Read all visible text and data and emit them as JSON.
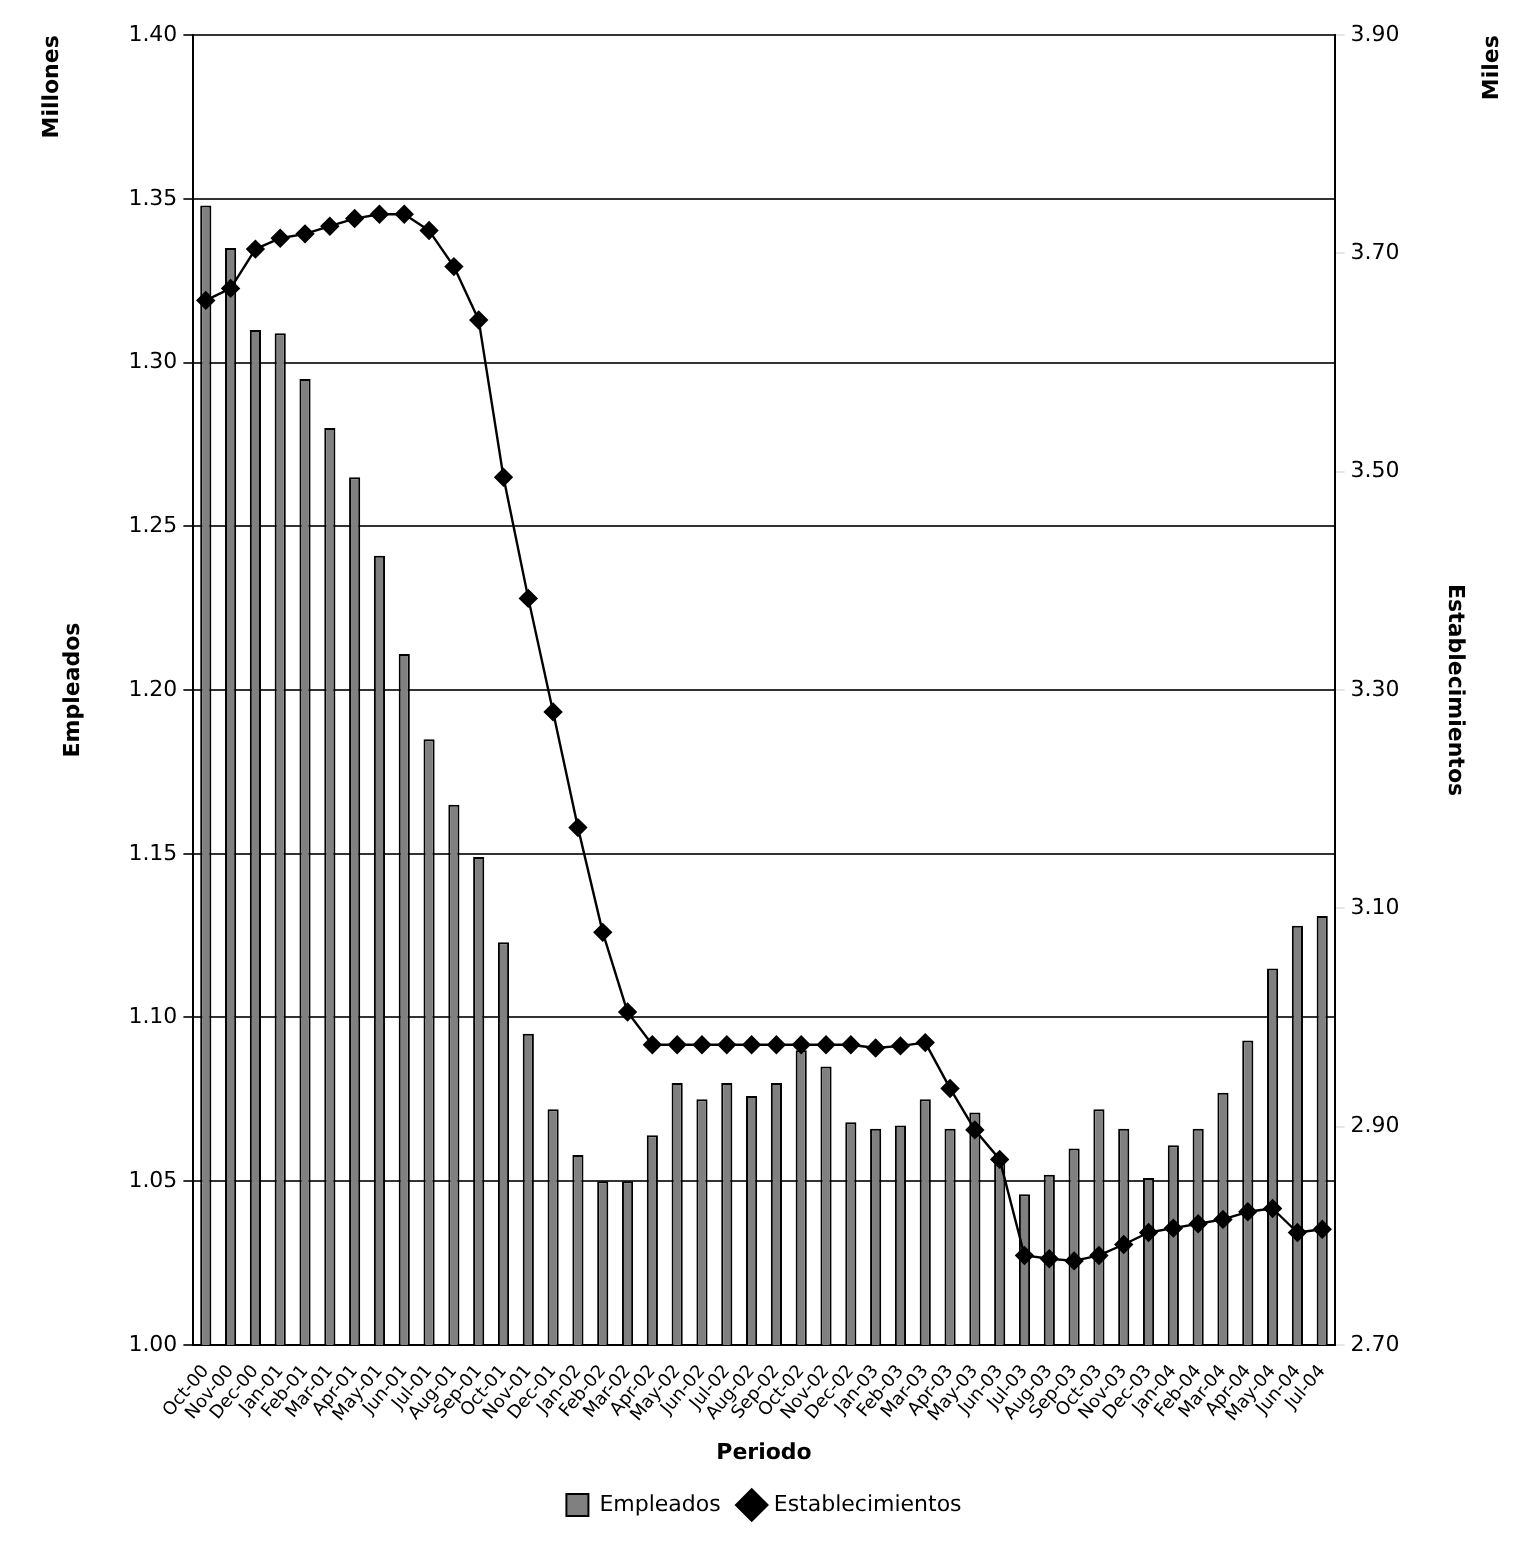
{
  "chart_data": {
    "type": "bar",
    "xlabel": "Periodo",
    "ylabel": "Empleados",
    "y2label": "Establecimientos",
    "categories": [
      "Oct-00",
      "Nov-00",
      "Dec-00",
      "Jan-01",
      "Feb-01",
      "Mar-01",
      "Apr-01",
      "May-01",
      "Jun-01",
      "Jul-01",
      "Aug-01",
      "Sep-01",
      "Oct-01",
      "Nov-01",
      "Dec-01",
      "Jan-02",
      "Feb-02",
      "Mar-02",
      "Apr-02",
      "May-02",
      "Jun-02",
      "Jul-02",
      "Aug-02",
      "Sep-02",
      "Oct-02",
      "Nov-02",
      "Dec-02",
      "Jan-03",
      "Feb-03",
      "Mar-03",
      "Apr-03",
      "May-03",
      "Jun-03",
      "Jul-03",
      "Aug-03",
      "Sep-03",
      "Oct-03",
      "Nov-03",
      "Dec-03",
      "Jan-04",
      "Feb-04",
      "Mar-04",
      "Apr-04",
      "May-04",
      "Jun-04",
      "Jul-04"
    ],
    "series": [
      {
        "name": "Empleados",
        "color": "#808080",
        "values": [
          1.348,
          1.335,
          1.31,
          1.309,
          1.295,
          1.28,
          1.265,
          1.241,
          1.211,
          1.185,
          1.165,
          1.149,
          1.123,
          1.095,
          1.072,
          1.058,
          1.05,
          1.05,
          1.064,
          1.08,
          1.075,
          1.08,
          1.076,
          1.08,
          1.09,
          1.085,
          1.068,
          1.066,
          1.067,
          1.075,
          1.066,
          1.071,
          1.057,
          1.046,
          1.052,
          1.06,
          1.072,
          1.066,
          1.051,
          1.061,
          1.066,
          1.077,
          1.093,
          1.115,
          1.128,
          1.131
        ]
      },
      {
        "name": "Establecimientos",
        "type": "line",
        "axis": "y2",
        "color": "#000000",
        "values": [
          3.657,
          3.668,
          3.704,
          3.714,
          3.718,
          3.725,
          3.732,
          3.736,
          3.736,
          3.721,
          3.688,
          3.639,
          3.495,
          3.384,
          3.28,
          3.174,
          3.078,
          3.005,
          2.975,
          2.975,
          2.975,
          2.975,
          2.975,
          2.975,
          2.975,
          2.975,
          2.975,
          2.972,
          2.974,
          2.977,
          2.935,
          2.897,
          2.87,
          2.782,
          2.779,
          2.777,
          2.782,
          2.792,
          2.803,
          2.807,
          2.811,
          2.815,
          2.822,
          2.825,
          2.803,
          2.806
        ]
      }
    ],
    "ylim": [
      1.0,
      1.4
    ],
    "yticks": [
      {
        "value": 1.0,
        "label": "1.00"
      },
      {
        "value": 1.05,
        "label": "1.05"
      },
      {
        "value": 1.1,
        "label": "1.10"
      },
      {
        "value": 1.15,
        "label": "1.15"
      },
      {
        "value": 1.2,
        "label": "1.20"
      },
      {
        "value": 1.25,
        "label": "1.25"
      },
      {
        "value": 1.3,
        "label": "1.30"
      },
      {
        "value": 1.35,
        "label": "1.35"
      },
      {
        "value": 1.4,
        "label": "1.40"
      }
    ],
    "y2lim": [
      2.7,
      3.9
    ],
    "y2ticks": [
      {
        "value": 2.7,
        "label": "2.70"
      },
      {
        "value": 2.9,
        "label": "2.90"
      },
      {
        "value": 3.1,
        "label": "3.10"
      },
      {
        "value": 3.3,
        "label": "3.30"
      },
      {
        "value": 3.5,
        "label": "3.50"
      },
      {
        "value": 3.7,
        "label": "3.70"
      },
      {
        "value": 3.9,
        "label": "3.90"
      }
    ],
    "annotations": [
      "Millones",
      "Miles"
    ],
    "grid": "y",
    "legend": "bottom",
    "marker": "diamond",
    "line_style": "solid"
  }
}
